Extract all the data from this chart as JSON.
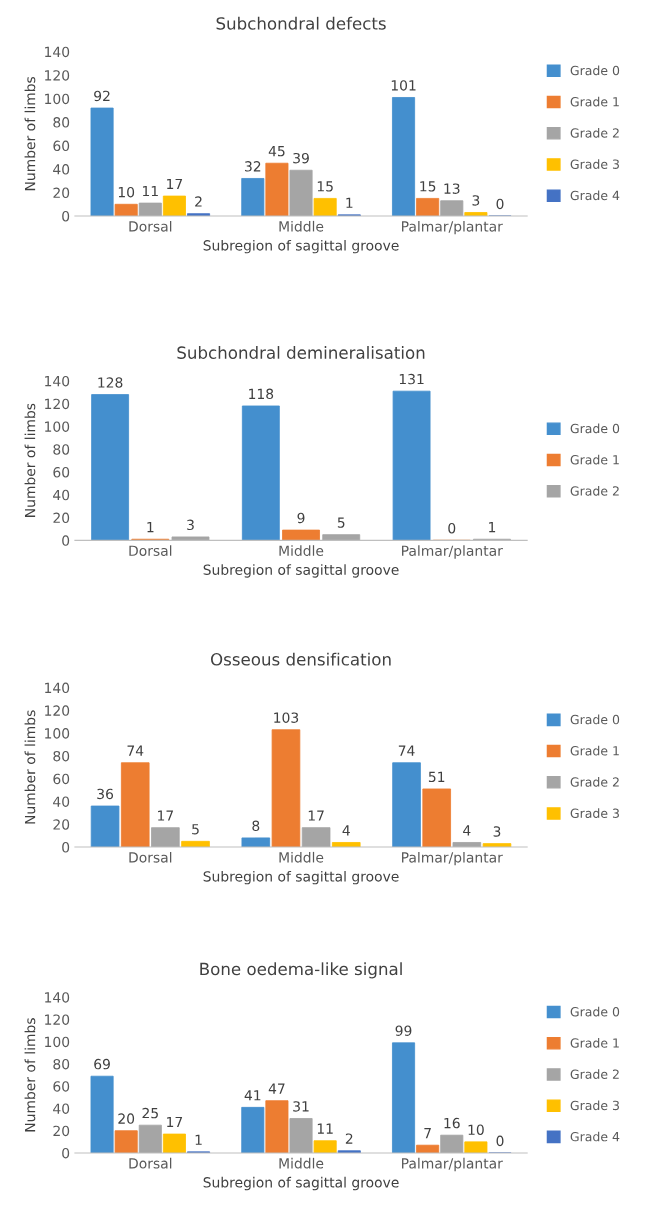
{
  "chart_data": [
    {
      "type": "bar",
      "title": "Subchondral defects",
      "xlabel": "Subregion of sagittal groove",
      "ylabel": "Number of limbs",
      "categories": [
        "Dorsal",
        "Middle",
        "Palmar/plantar"
      ],
      "ylim": [
        0,
        140
      ],
      "yticks": [
        0,
        20,
        40,
        60,
        80,
        100,
        120,
        140
      ],
      "data_labels": true,
      "legend": "right",
      "series": [
        {
          "name": "Grade 0",
          "color": "#448fce",
          "values": [
            92,
            32,
            101
          ]
        },
        {
          "name": "Grade 1",
          "color": "#ed7d31",
          "values": [
            10,
            45,
            15
          ]
        },
        {
          "name": "Grade 2",
          "color": "#a5a5a5",
          "values": [
            11,
            39,
            13
          ]
        },
        {
          "name": "Grade 3",
          "color": "#ffc000",
          "values": [
            17,
            15,
            3
          ]
        },
        {
          "name": "Grade 4",
          "color": "#4472c4",
          "values": [
            2,
            1,
            0
          ]
        }
      ]
    },
    {
      "type": "bar",
      "title": "Subchondral demineralisation",
      "xlabel": "Subregion of sagittal groove",
      "ylabel": "Number of limbs",
      "categories": [
        "Dorsal",
        "Middle",
        "Palmar/plantar"
      ],
      "ylim": [
        0,
        140
      ],
      "yticks": [
        0,
        20,
        40,
        60,
        80,
        100,
        120,
        140
      ],
      "data_labels": true,
      "legend": "right",
      "series": [
        {
          "name": "Grade 0",
          "color": "#448fce",
          "values": [
            128,
            118,
            131
          ]
        },
        {
          "name": "Grade 1",
          "color": "#ed7d31",
          "values": [
            1,
            9,
            0
          ]
        },
        {
          "name": "Grade 2",
          "color": "#a5a5a5",
          "values": [
            3,
            5,
            1
          ]
        }
      ]
    },
    {
      "type": "bar",
      "title": "Osseous densification",
      "xlabel": "Subregion of sagittal groove",
      "ylabel": "Number of limbs",
      "categories": [
        "Dorsal",
        "Middle",
        "Palmar/plantar"
      ],
      "ylim": [
        0,
        140
      ],
      "yticks": [
        0,
        20,
        40,
        60,
        80,
        100,
        120,
        140
      ],
      "data_labels": true,
      "legend": "right",
      "series": [
        {
          "name": "Grade 0",
          "color": "#448fce",
          "values": [
            36,
            8,
            74
          ]
        },
        {
          "name": "Grade 1",
          "color": "#ed7d31",
          "values": [
            74,
            103,
            51
          ]
        },
        {
          "name": "Grade 2",
          "color": "#a5a5a5",
          "values": [
            17,
            17,
            4
          ]
        },
        {
          "name": "Grade 3",
          "color": "#ffc000",
          "values": [
            5,
            4,
            3
          ]
        }
      ]
    },
    {
      "type": "bar",
      "title": "Bone oedema-like signal",
      "xlabel": "Subregion of sagittal groove",
      "ylabel": "Number of limbs",
      "categories": [
        "Dorsal",
        "Middle",
        "Palmar/plantar"
      ],
      "ylim": [
        0,
        140
      ],
      "yticks": [
        0,
        20,
        40,
        60,
        80,
        100,
        120,
        140
      ],
      "data_labels": true,
      "legend": "right",
      "series": [
        {
          "name": "Grade 0",
          "color": "#448fce",
          "values": [
            69,
            41,
            99
          ]
        },
        {
          "name": "Grade 1",
          "color": "#ed7d31",
          "values": [
            20,
            47,
            7
          ]
        },
        {
          "name": "Grade 2",
          "color": "#a5a5a5",
          "values": [
            25,
            31,
            16
          ]
        },
        {
          "name": "Grade 3",
          "color": "#ffc000",
          "values": [
            17,
            11,
            10
          ]
        },
        {
          "name": "Grade 4",
          "color": "#4472c4",
          "values": [
            1,
            2,
            0
          ]
        }
      ]
    }
  ]
}
